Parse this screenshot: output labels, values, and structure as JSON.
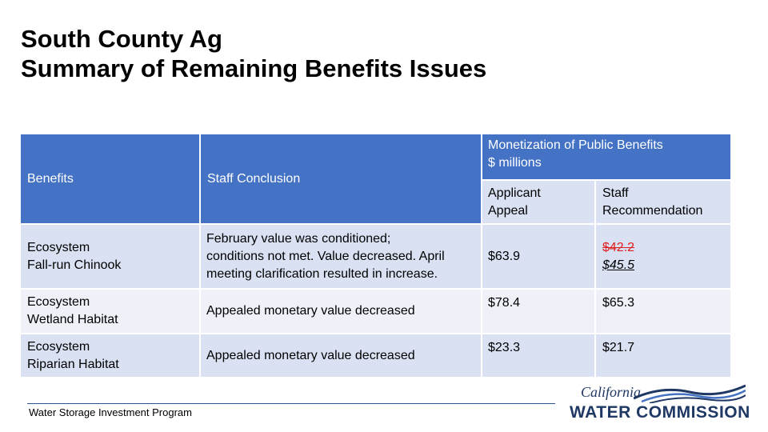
{
  "title": {
    "line1": "South County Ag",
    "line2": "Summary of Remaining Benefits Issues"
  },
  "table": {
    "headers": {
      "benefits": "Benefits",
      "staff_conclusion": "Staff Conclusion",
      "monetization_line1": "Monetization of Public Benefits",
      "monetization_line2": "$ millions",
      "applicant_line1": "Applicant",
      "applicant_line2": "Appeal",
      "staff_rec_line1": "Staff",
      "staff_rec_line2": "Recommendation"
    },
    "rows": [
      {
        "benefit_line1": "Ecosystem",
        "benefit_line2": "Fall-run Chinook",
        "conclusion_line1": "February value was conditioned;",
        "conclusion_line2": "conditions not met. Value decreased. April",
        "conclusion_line3": "meeting clarification resulted in increase.",
        "applicant": "$63.9",
        "staff_old": "$42.2",
        "staff_new": "$45.5"
      },
      {
        "benefit_line1": "Ecosystem",
        "benefit_line2": "Wetland Habitat",
        "conclusion_line1": "Appealed monetary value decreased",
        "applicant": "$78.4",
        "staff_new": "$65.3"
      },
      {
        "benefit_line1": "Ecosystem",
        "benefit_line2": "Riparian Habitat",
        "conclusion_line1": "Appealed monetary value decreased",
        "applicant": "$23.3",
        "staff_new": "$21.7"
      }
    ]
  },
  "footer": {
    "program": "Water Storage Investment Program"
  },
  "logo": {
    "top": "California",
    "bottom": "WATER COMMISSION",
    "color": "#1f3864"
  },
  "colors": {
    "header_blue": "#4472c4",
    "subheader": "#d9e1f2",
    "row_alt": "#eef1f8",
    "strike_red": "#e02020"
  }
}
